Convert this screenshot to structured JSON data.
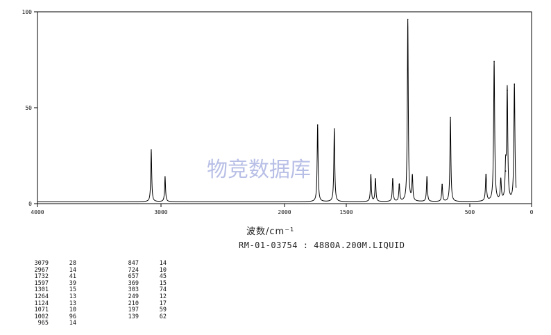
{
  "watermark": "物竞数据库",
  "x_axis_title": "波数/cm⁻¹",
  "caption": "RM-01-03754 : 4880A.200M.LIQUID",
  "peak_columns": [
    [
      {
        "wavenumber": "3079",
        "intensity": "28"
      },
      {
        "wavenumber": "2967",
        "intensity": "14"
      },
      {
        "wavenumber": "1732",
        "intensity": "41"
      },
      {
        "wavenumber": "1597",
        "intensity": "39"
      },
      {
        "wavenumber": "1301",
        "intensity": "15"
      },
      {
        "wavenumber": "1264",
        "intensity": "13"
      },
      {
        "wavenumber": "1124",
        "intensity": "13"
      },
      {
        "wavenumber": "1071",
        "intensity": "10"
      },
      {
        "wavenumber": "1002",
        "intensity": "96"
      },
      {
        "wavenumber": "965",
        "intensity": "14"
      }
    ],
    [
      {
        "wavenumber": "847",
        "intensity": "14"
      },
      {
        "wavenumber": "724",
        "intensity": "10"
      },
      {
        "wavenumber": "657",
        "intensity": "45"
      },
      {
        "wavenumber": "369",
        "intensity": "15"
      },
      {
        "wavenumber": "303",
        "intensity": "74"
      },
      {
        "wavenumber": "249",
        "intensity": "12"
      },
      {
        "wavenumber": "210",
        "intensity": "17"
      },
      {
        "wavenumber": "197",
        "intensity": "59"
      },
      {
        "wavenumber": "139",
        "intensity": "62"
      }
    ]
  ],
  "chart_data": {
    "type": "line",
    "title": "",
    "xlabel": "波数/cm⁻¹",
    "ylabel": "",
    "xlim": [
      4000,
      0
    ],
    "ylim": [
      0,
      100
    ],
    "x_ticks": [
      {
        "value": 4000,
        "label": "4000"
      },
      {
        "value": 3000,
        "label": "3000"
      },
      {
        "value": 2000,
        "label": "2000"
      },
      {
        "value": 1500,
        "label": "1500"
      },
      {
        "value": 500,
        "label": "500"
      },
      {
        "value": 0,
        "label": "0"
      }
    ],
    "y_ticks": [
      {
        "value": 0,
        "label": "0"
      },
      {
        "value": 50,
        "label": "50"
      },
      {
        "value": 100,
        "label": "100"
      }
    ],
    "baseline": 1,
    "line_color": "#000000",
    "peaks": [
      {
        "x": 3079,
        "y": 28
      },
      {
        "x": 2967,
        "y": 14
      },
      {
        "x": 1732,
        "y": 41
      },
      {
        "x": 1597,
        "y": 39
      },
      {
        "x": 1301,
        "y": 15
      },
      {
        "x": 1264,
        "y": 13
      },
      {
        "x": 1124,
        "y": 13
      },
      {
        "x": 1071,
        "y": 10
      },
      {
        "x": 1002,
        "y": 96
      },
      {
        "x": 965,
        "y": 14
      },
      {
        "x": 847,
        "y": 14
      },
      {
        "x": 724,
        "y": 10
      },
      {
        "x": 657,
        "y": 45
      },
      {
        "x": 369,
        "y": 15
      },
      {
        "x": 303,
        "y": 74
      },
      {
        "x": 249,
        "y": 12
      },
      {
        "x": 210,
        "y": 17
      },
      {
        "x": 197,
        "y": 59
      },
      {
        "x": 139,
        "y": 62
      }
    ]
  }
}
